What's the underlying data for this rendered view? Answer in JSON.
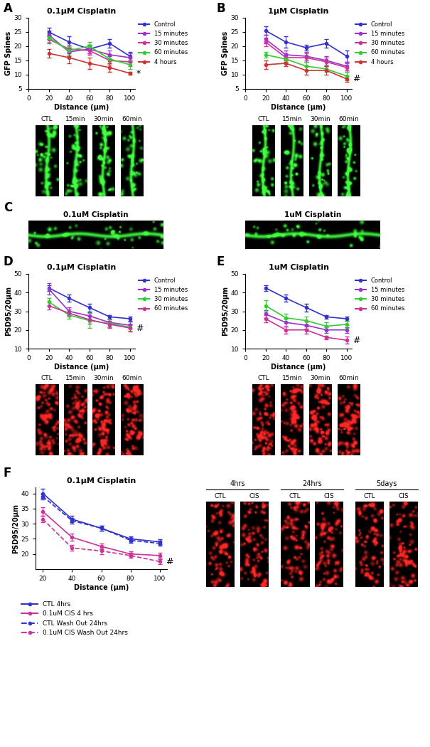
{
  "chart_data": [
    {
      "panel": "A",
      "type": "line",
      "title": "0.1μM Cisplatin",
      "x_label": "Distance (μm)",
      "y_label": "GFP Spines",
      "x": [
        20,
        40,
        60,
        80,
        100
      ],
      "xlim": [
        0,
        105
      ],
      "xticks": [
        0,
        20,
        40,
        60,
        80,
        100
      ],
      "ylim": [
        5,
        30
      ],
      "yticks": [
        5,
        10,
        15,
        20,
        25,
        30
      ],
      "legend": "right",
      "annotation": "*",
      "series": [
        {
          "name": "Control",
          "color": "#3333cc",
          "marker": "circle",
          "line_style": "solid",
          "values": [
            25,
            21.5,
            19,
            21,
            16.5
          ],
          "errors": [
            1.5,
            2,
            1.5,
            1.5,
            1.5
          ]
        },
        {
          "name": "15 minutes",
          "color": "#9933cc",
          "marker": "circle",
          "line_style": "solid",
          "values": [
            24,
            18,
            19,
            17,
            16
          ],
          "errors": [
            1.5,
            1.5,
            1.5,
            1.5,
            1.5
          ]
        },
        {
          "name": "30 minutes",
          "color": "#cc3399",
          "marker": "circle",
          "line_style": "solid",
          "values": [
            22.5,
            19,
            18.5,
            15,
            14.5
          ],
          "errors": [
            1.5,
            1.5,
            1.5,
            1.5,
            1.5
          ]
        },
        {
          "name": "60 minutes",
          "color": "#33cc33",
          "marker": "circle",
          "line_style": "solid",
          "values": [
            23,
            18.5,
            20,
            15.5,
            13.5
          ],
          "errors": [
            1.5,
            1.5,
            1.5,
            1.5,
            1.5
          ]
        },
        {
          "name": "4 hours",
          "color": "#cc3333",
          "marker": "circle",
          "line_style": "solid",
          "values": [
            17.5,
            16,
            14,
            12.5,
            10.5
          ],
          "errors": [
            1.5,
            2,
            2,
            1.5,
            0.5
          ]
        }
      ]
    },
    {
      "panel": "B",
      "type": "line",
      "title": "1μM Cisplatin",
      "x_label": "Distance (μm)",
      "y_label": "GFP Spines",
      "x": [
        20,
        40,
        60,
        80,
        100
      ],
      "xlim": [
        0,
        105
      ],
      "xticks": [
        0,
        20,
        40,
        60,
        80,
        100
      ],
      "ylim": [
        5,
        30
      ],
      "yticks": [
        5,
        10,
        15,
        20,
        25,
        30
      ],
      "legend": "right",
      "annotation": "#",
      "series": [
        {
          "name": "Control",
          "color": "#3333cc",
          "marker": "circle",
          "line_style": "solid",
          "values": [
            25.5,
            21.5,
            19.5,
            21,
            16.5
          ],
          "errors": [
            1.5,
            2,
            1,
            1.5,
            2
          ]
        },
        {
          "name": "15 minutes",
          "color": "#9933cc",
          "marker": "circle",
          "line_style": "solid",
          "values": [
            22.5,
            17,
            16.5,
            15,
            13
          ],
          "errors": [
            1.5,
            1.5,
            1.5,
            1.5,
            1.5
          ]
        },
        {
          "name": "30 minutes",
          "color": "#cc3399",
          "marker": "circle",
          "line_style": "solid",
          "values": [
            21.5,
            16,
            16,
            14.5,
            12.5
          ],
          "errors": [
            1.5,
            1.5,
            1.5,
            1.5,
            1.5
          ]
        },
        {
          "name": "60 minutes",
          "color": "#33cc33",
          "marker": "circle",
          "line_style": "solid",
          "values": [
            17,
            15.5,
            13,
            12,
            9.5
          ],
          "errors": [
            1,
            1,
            1.5,
            1,
            1.5
          ]
        },
        {
          "name": "4 hours",
          "color": "#cc3333",
          "marker": "circle",
          "line_style": "solid",
          "values": [
            13.5,
            14,
            11.5,
            11.5,
            8.5
          ],
          "errors": [
            1.5,
            1,
            1.5,
            1.5,
            1
          ]
        }
      ]
    },
    {
      "panel": "D",
      "type": "line",
      "title": "0.1μM Cisplatin",
      "x_label": "Distance (μm)",
      "y_label": "PSD95/20μm",
      "x": [
        20,
        40,
        60,
        80,
        100
      ],
      "xlim": [
        0,
        105
      ],
      "xticks": [
        0,
        20,
        40,
        60,
        80,
        100
      ],
      "ylim": [
        10,
        50
      ],
      "yticks": [
        10,
        20,
        30,
        40,
        50
      ],
      "legend": "right",
      "annotation": "#",
      "series": [
        {
          "name": "Control",
          "color": "#3333cc",
          "marker": "circle",
          "line_style": "solid",
          "values": [
            42.5,
            37,
            32,
            27,
            26
          ],
          "errors": [
            1.5,
            2,
            2,
            1,
            1
          ]
        },
        {
          "name": "15 minutes",
          "color": "#9933cc",
          "marker": "circle",
          "line_style": "solid",
          "values": [
            42,
            30,
            27.5,
            24,
            22.5
          ],
          "errors": [
            3,
            2,
            2,
            2,
            2
          ]
        },
        {
          "name": "30 minutes",
          "color": "#33cc33",
          "marker": "circle",
          "line_style": "solid",
          "values": [
            35,
            28,
            25,
            23.5,
            21.5
          ],
          "errors": [
            2,
            2,
            4,
            2,
            2
          ]
        },
        {
          "name": "60 minutes",
          "color": "#cc3399",
          "marker": "circle",
          "line_style": "solid",
          "values": [
            33,
            29,
            25.5,
            23,
            21
          ],
          "errors": [
            2,
            2,
            2,
            2,
            2
          ]
        }
      ]
    },
    {
      "panel": "E",
      "type": "line",
      "title": "1uM Cisplatin",
      "x_label": "Distance (μm)",
      "y_label": "PSD95/20μm",
      "x": [
        20,
        40,
        60,
        80,
        100
      ],
      "xlim": [
        0,
        105
      ],
      "xticks": [
        0,
        20,
        40,
        60,
        80,
        100
      ],
      "ylim": [
        10,
        50
      ],
      "yticks": [
        10,
        20,
        30,
        40,
        50
      ],
      "legend": "right",
      "annotation": "#",
      "series": [
        {
          "name": "Control",
          "color": "#3333cc",
          "marker": "circle",
          "line_style": "solid",
          "values": [
            42.5,
            37,
            32,
            27,
            26
          ],
          "errors": [
            1.5,
            2,
            2,
            1,
            1
          ]
        },
        {
          "name": "15 minutes",
          "color": "#9933cc",
          "marker": "circle",
          "line_style": "solid",
          "values": [
            28.5,
            24,
            22.5,
            20,
            20
          ],
          "errors": [
            2,
            2,
            2,
            1.5,
            1.5
          ]
        },
        {
          "name": "30 minutes",
          "color": "#33cc33",
          "marker": "circle",
          "line_style": "solid",
          "values": [
            33,
            26.5,
            25,
            22,
            23
          ],
          "errors": [
            3,
            2,
            2,
            2,
            2
          ]
        },
        {
          "name": "60 minutes",
          "color": "#cc3399",
          "marker": "circle",
          "line_style": "solid",
          "values": [
            26,
            20,
            20,
            16,
            14.5
          ],
          "errors": [
            2,
            2,
            2,
            1,
            2
          ]
        }
      ]
    },
    {
      "panel": "F",
      "type": "line",
      "title": "0.1μM Cisplatin",
      "x_label": "Distance (μm)",
      "y_label": "PSD95/20μm",
      "x": [
        20,
        40,
        60,
        80,
        100
      ],
      "xlim": [
        15,
        105
      ],
      "xticks": [
        20,
        40,
        60,
        80,
        100
      ],
      "ylim": [
        15,
        42
      ],
      "yticks": [
        20,
        25,
        30,
        35,
        40
      ],
      "legend": "bottom",
      "annotation": "#",
      "series": [
        {
          "name": "CTL 4hrs",
          "color": "#3333cc",
          "marker": "circle",
          "line_style": "solid",
          "values": [
            40,
            31.5,
            28.5,
            25,
            24
          ],
          "errors": [
            1.5,
            1,
            0.8,
            0.8,
            0.8
          ]
        },
        {
          "name": "0.1uM CIS 4 hrs",
          "color": "#cc3399",
          "marker": "circle",
          "line_style": "solid",
          "values": [
            34,
            25.5,
            22.5,
            20,
            19.5
          ],
          "errors": [
            1.5,
            1.2,
            1,
            0.8,
            0.8
          ]
        },
        {
          "name": "CTL Wash Out 24hrs",
          "color": "#3333cc",
          "marker": "circle",
          "line_style": "dashed",
          "values": [
            39,
            31,
            28.5,
            24.5,
            23.5
          ],
          "errors": [
            1,
            1,
            0.8,
            0.8,
            0.8
          ]
        },
        {
          "name": "0.1uM CIS Wash Out 24hrs",
          "color": "#cc3399",
          "marker": "circle",
          "line_style": "dashed",
          "values": [
            31.5,
            22,
            21,
            19.5,
            17.5
          ],
          "errors": [
            1,
            1,
            1,
            0.8,
            0.8
          ]
        }
      ]
    }
  ],
  "images": [
    {
      "panel": "A",
      "color": "green",
      "labels": [
        "CTL",
        "15min",
        "30min",
        "60min"
      ]
    },
    {
      "panel": "B",
      "color": "green",
      "labels": [
        "CTL",
        "15min",
        "30min",
        "60min"
      ]
    },
    {
      "panel": "C",
      "color": "green",
      "labels": [
        "0.1uM Cisplatin",
        "1uM Cisplatin"
      ]
    },
    {
      "panel": "D",
      "color": "red",
      "labels": [
        "CTL",
        "15min",
        "30min",
        "60min"
      ]
    },
    {
      "panel": "E",
      "color": "red",
      "labels": [
        "CTL",
        "15min",
        "30min",
        "60min"
      ]
    },
    {
      "panel": "F",
      "color": "red",
      "groups": [
        {
          "label": "4hrs",
          "items": [
            "CTL",
            "CIS"
          ]
        },
        {
          "label": "24hrs",
          "items": [
            "CTL",
            "CIS"
          ]
        },
        {
          "label": "5days",
          "items": [
            "CTL",
            "CIS"
          ]
        }
      ]
    }
  ]
}
